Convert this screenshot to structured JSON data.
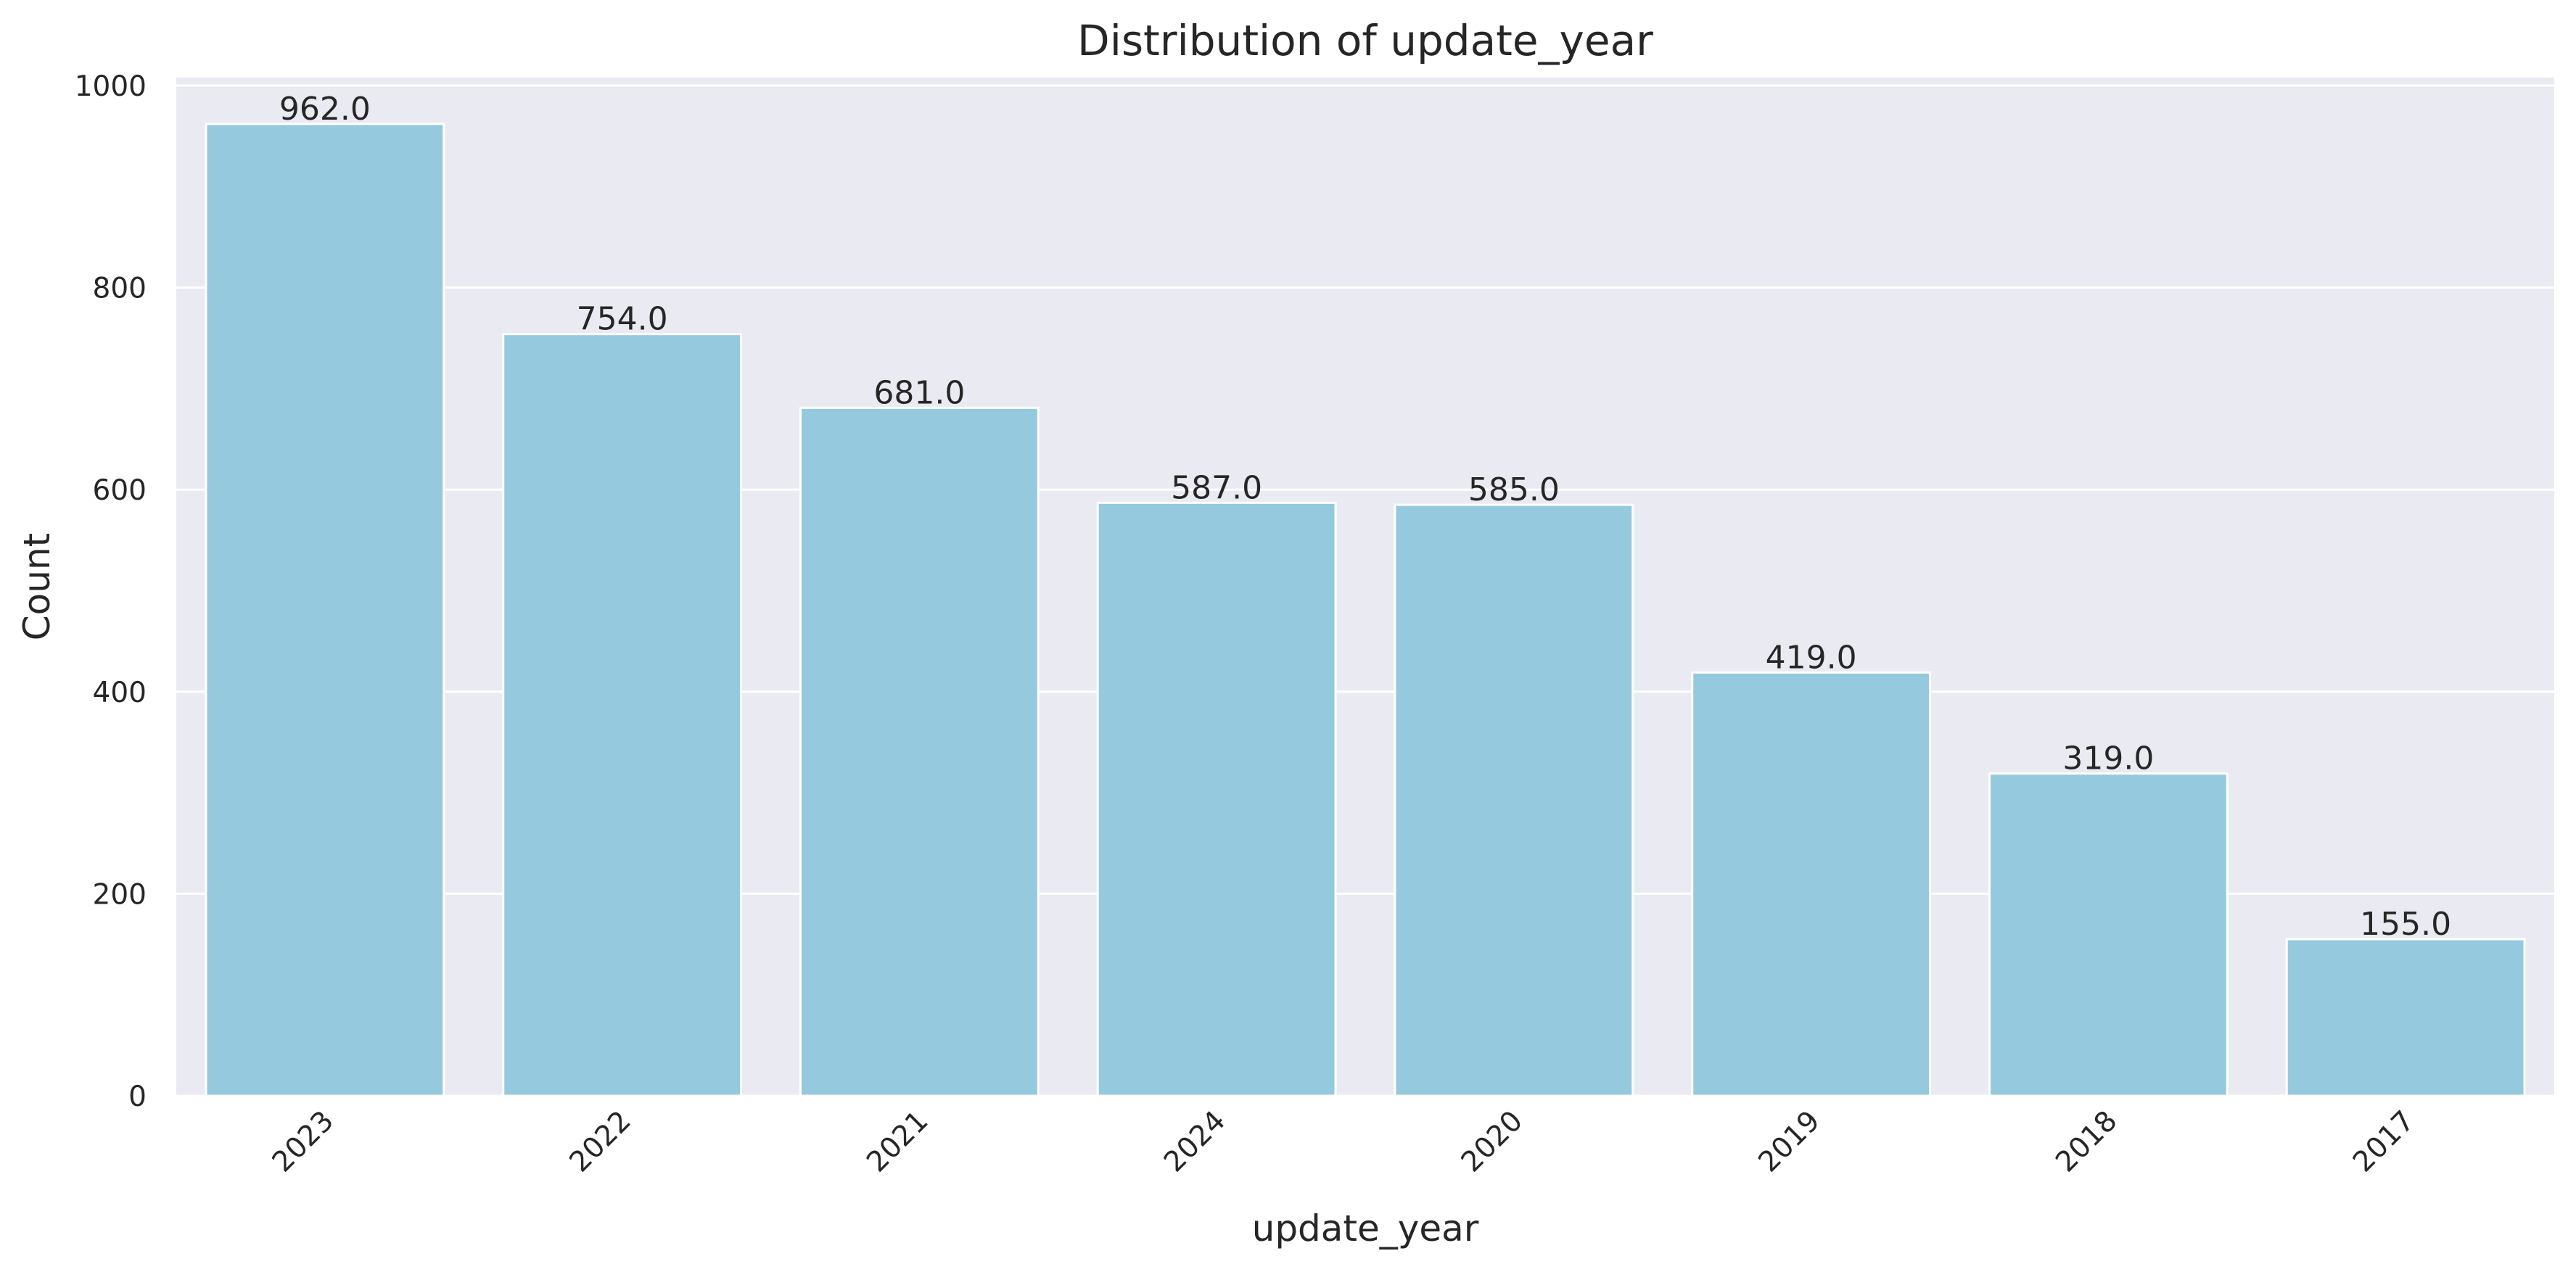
{
  "chart_data": {
    "type": "bar",
    "title": "Distribution of update_year",
    "xlabel": "update_year",
    "ylabel": "Count",
    "categories": [
      "2023",
      "2022",
      "2021",
      "2024",
      "2020",
      "2019",
      "2018",
      "2017"
    ],
    "values": [
      962,
      754,
      681,
      587,
      585,
      419,
      319,
      155
    ],
    "value_labels": [
      "962.0",
      "754.0",
      "681.0",
      "587.0",
      "585.0",
      "419.0",
      "319.0",
      "155.0"
    ],
    "yticks": [
      0,
      200,
      400,
      600,
      800,
      1000
    ],
    "ylim": [
      0,
      1010
    ],
    "grid": true,
    "x_tick_rotation_deg": 45,
    "colors": {
      "bar": "#95c9de",
      "background": "#eaeaf2",
      "grid": "#ffffff",
      "text": "#262626"
    }
  }
}
